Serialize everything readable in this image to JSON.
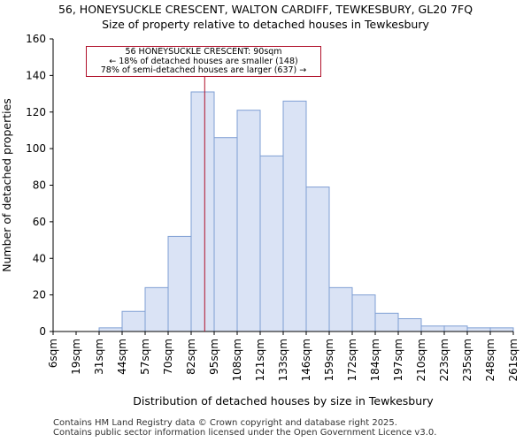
{
  "title_line1": "56, HONEYSUCKLE CRESCENT, WALTON CARDIFF, TEWKESBURY, GL20 7FQ",
  "title_line2": "Size of property relative to detached houses in Tewkesbury",
  "footer_line1": "Contains HM Land Registry data © Crown copyright and database right 2025.",
  "footer_line2": "Contains public sector information licensed under the Open Government Licence v3.0.",
  "annotation": {
    "line1": "56 HONEYSUCKLE CRESCENT: 90sqm",
    "line2": "← 18% of detached houses are smaller (148)",
    "line3": "78% of semi-detached houses are larger (637) →"
  },
  "colors": {
    "bar_fill": "#dae3f5",
    "bar_edge": "#7f9fd4",
    "marker": "#b0102a"
  },
  "chart_data": {
    "type": "bar",
    "xlabel": "Distribution of detached houses by size in Tewkesbury",
    "ylabel": "Number of detached properties",
    "ylim": [
      0,
      160
    ],
    "yticks": [
      0,
      20,
      40,
      60,
      80,
      100,
      120,
      140,
      160
    ],
    "bin_edges_labels": [
      "6sqm",
      "19sqm",
      "31sqm",
      "44sqm",
      "57sqm",
      "70sqm",
      "82sqm",
      "95sqm",
      "108sqm",
      "121sqm",
      "133sqm",
      "146sqm",
      "159sqm",
      "172sqm",
      "184sqm",
      "197sqm",
      "210sqm",
      "223sqm",
      "235sqm",
      "248sqm",
      "261sqm"
    ],
    "values": [
      0,
      0,
      2,
      11,
      24,
      52,
      131,
      106,
      121,
      96,
      126,
      79,
      24,
      20,
      10,
      7,
      3,
      3,
      2,
      2
    ],
    "marker_value": 90,
    "marker_label": "56 HONEYSUCKLE CRESCENT: 90sqm"
  }
}
